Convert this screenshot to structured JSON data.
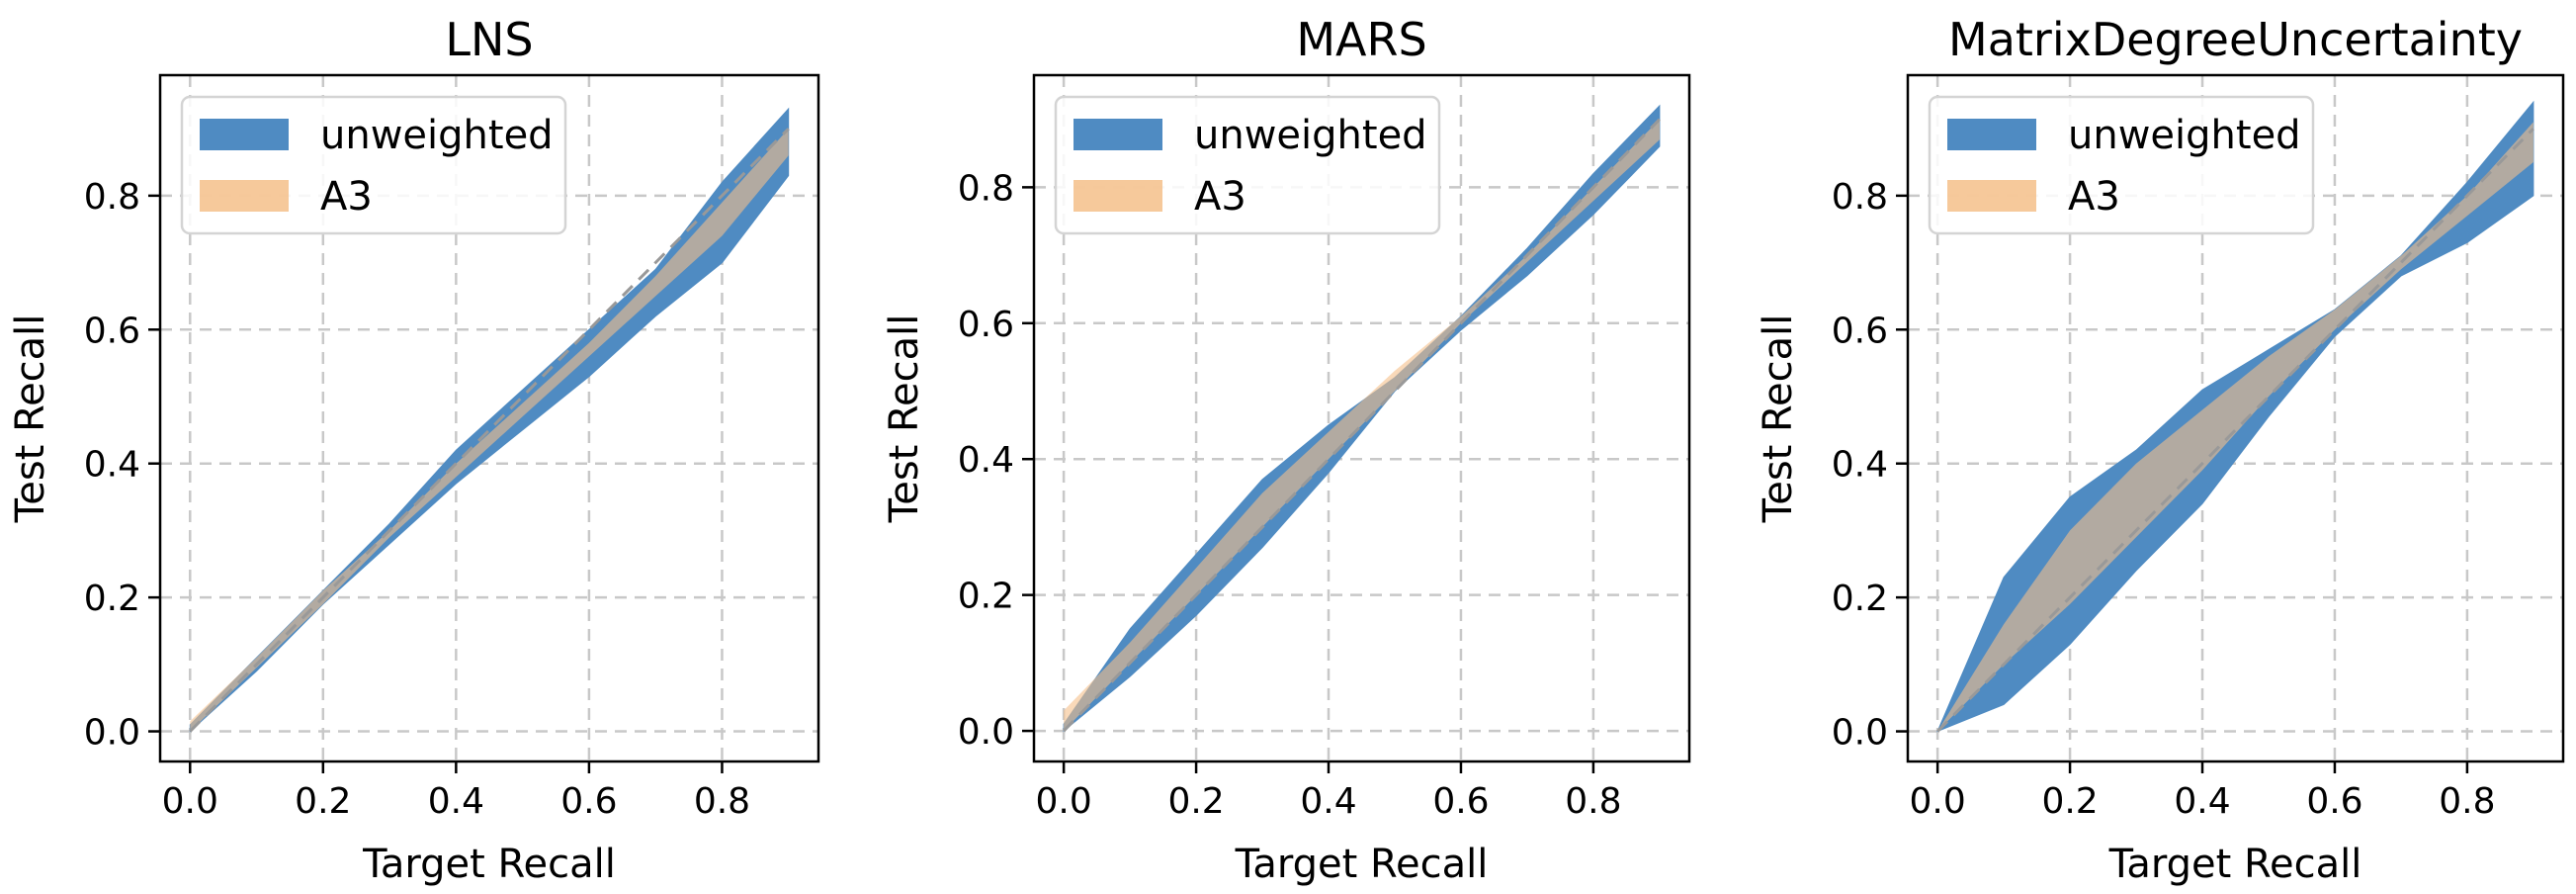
{
  "colors": {
    "unweighted": "#4f8bc2",
    "a3": "#f5bf8a",
    "overlap": "#a08670",
    "diagonal": "#999999",
    "grid": "#c8c8c8"
  },
  "chart_data": [
    {
      "type": "area",
      "title": "LNS",
      "xlabel": "Target Recall",
      "ylabel": "Test Recall",
      "xlim": [
        -0.045,
        0.945
      ],
      "ylim": [
        -0.045,
        0.98
      ],
      "xticks": [
        0.0,
        0.2,
        0.4,
        0.6,
        0.8
      ],
      "yticks": [
        0.0,
        0.2,
        0.4,
        0.6,
        0.8
      ],
      "xtick_labels": [
        "0.0",
        "0.2",
        "0.4",
        "0.6",
        "0.8"
      ],
      "ytick_labels": [
        "0.0",
        "0.2",
        "0.4",
        "0.6",
        "0.8"
      ],
      "grid": true,
      "legend": "top-left",
      "x": [
        0.0,
        0.1,
        0.2,
        0.3,
        0.4,
        0.5,
        0.6,
        0.7,
        0.8,
        0.9
      ],
      "series": [
        {
          "name": "unweighted",
          "lower": [
            0.0,
            0.09,
            0.19,
            0.28,
            0.37,
            0.45,
            0.53,
            0.62,
            0.7,
            0.83
          ],
          "upper": [
            0.01,
            0.11,
            0.21,
            0.31,
            0.42,
            0.51,
            0.6,
            0.69,
            0.82,
            0.93
          ]
        },
        {
          "name": "A3",
          "lower": [
            0.0,
            0.095,
            0.19,
            0.29,
            0.38,
            0.47,
            0.56,
            0.65,
            0.74,
            0.86
          ],
          "upper": [
            0.015,
            0.11,
            0.21,
            0.3,
            0.4,
            0.49,
            0.58,
            0.68,
            0.79,
            0.9
          ]
        }
      ]
    },
    {
      "type": "area",
      "title": "MARS",
      "xlabel": "Target Recall",
      "ylabel": "Test Recall",
      "xlim": [
        -0.045,
        0.945
      ],
      "ylim": [
        -0.045,
        0.965
      ],
      "xticks": [
        0.0,
        0.2,
        0.4,
        0.6,
        0.8
      ],
      "yticks": [
        0.0,
        0.2,
        0.4,
        0.6,
        0.8
      ],
      "xtick_labels": [
        "0.0",
        "0.2",
        "0.4",
        "0.6",
        "0.8"
      ],
      "ytick_labels": [
        "0.0",
        "0.2",
        "0.4",
        "0.6",
        "0.8"
      ],
      "grid": true,
      "legend": "top-left",
      "x": [
        0.0,
        0.1,
        0.2,
        0.3,
        0.4,
        0.5,
        0.6,
        0.7,
        0.8,
        0.9
      ],
      "series": [
        {
          "name": "unweighted",
          "lower": [
            0.0,
            0.08,
            0.17,
            0.27,
            0.38,
            0.5,
            0.59,
            0.67,
            0.76,
            0.86
          ],
          "upper": [
            0.01,
            0.15,
            0.26,
            0.37,
            0.45,
            0.52,
            0.61,
            0.71,
            0.82,
            0.92
          ]
        },
        {
          "name": "A3",
          "lower": [
            0.0,
            0.1,
            0.2,
            0.3,
            0.4,
            0.5,
            0.6,
            0.69,
            0.78,
            0.87
          ],
          "upper": [
            0.03,
            0.13,
            0.24,
            0.35,
            0.44,
            0.53,
            0.61,
            0.7,
            0.8,
            0.9
          ]
        }
      ]
    },
    {
      "type": "area",
      "title": "MatrixDegreeUncertainty",
      "xlabel": "Target Recall",
      "ylabel": "Test Recall",
      "xlim": [
        -0.045,
        0.945
      ],
      "ylim": [
        -0.045,
        0.98
      ],
      "xticks": [
        0.0,
        0.2,
        0.4,
        0.6,
        0.8
      ],
      "yticks": [
        0.0,
        0.2,
        0.4,
        0.6,
        0.8
      ],
      "xtick_labels": [
        "0.0",
        "0.2",
        "0.4",
        "0.6",
        "0.8"
      ],
      "ytick_labels": [
        "0.0",
        "0.2",
        "0.4",
        "0.6",
        "0.8"
      ],
      "grid": true,
      "legend": "top-left",
      "x": [
        0.0,
        0.1,
        0.2,
        0.3,
        0.4,
        0.5,
        0.6,
        0.7,
        0.8,
        0.9
      ],
      "series": [
        {
          "name": "unweighted",
          "lower": [
            0.0,
            0.04,
            0.13,
            0.24,
            0.34,
            0.47,
            0.59,
            0.68,
            0.73,
            0.8
          ],
          "upper": [
            0.0,
            0.23,
            0.35,
            0.42,
            0.51,
            0.57,
            0.63,
            0.71,
            0.82,
            0.94
          ]
        },
        {
          "name": "A3",
          "lower": [
            0.0,
            0.1,
            0.19,
            0.29,
            0.39,
            0.5,
            0.6,
            0.69,
            0.77,
            0.85
          ],
          "upper": [
            0.0,
            0.16,
            0.3,
            0.4,
            0.48,
            0.56,
            0.63,
            0.71,
            0.8,
            0.91
          ]
        }
      ]
    }
  ]
}
